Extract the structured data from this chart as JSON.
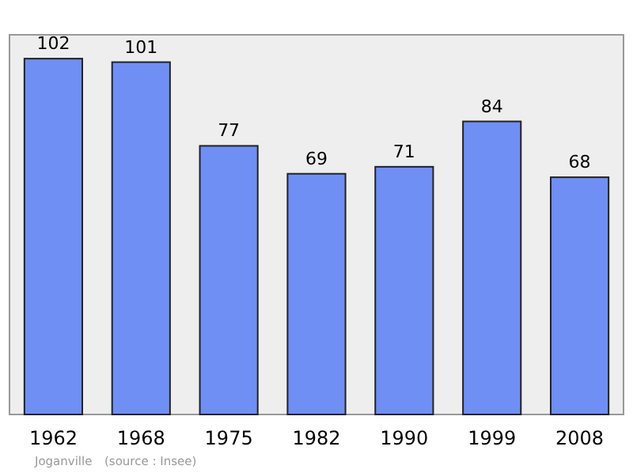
{
  "chart_data": {
    "type": "bar",
    "categories": [
      "1962",
      "1968",
      "1975",
      "1982",
      "1990",
      "1999",
      "2008"
    ],
    "values": [
      102,
      101,
      77,
      69,
      71,
      84,
      68
    ],
    "color": "#6f8ff5",
    "data_labels": true,
    "annotations": [
      "Joganville",
      "(source : Insee)"
    ]
  }
}
